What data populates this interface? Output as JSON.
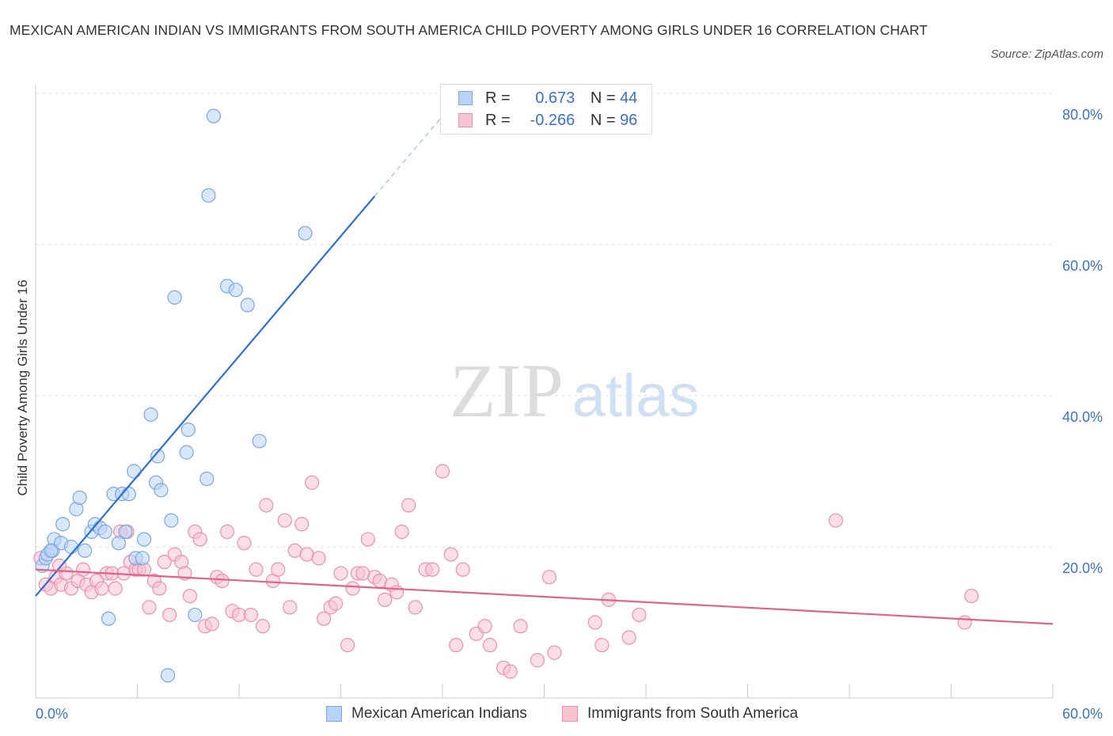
{
  "title": "MEXICAN AMERICAN INDIAN VS IMMIGRANTS FROM SOUTH AMERICA CHILD POVERTY AMONG GIRLS UNDER 16 CORRELATION CHART",
  "source": "Source: ZipAtlas.com",
  "watermark": {
    "zip": "ZIP",
    "atlas": "atlas"
  },
  "colors": {
    "blue_fill": "#b9d3f5",
    "blue_stroke": "#7aa7e3",
    "blue_line": "#2f6fcf",
    "pink_fill": "#f7c3d3",
    "pink_stroke": "#ec8fae",
    "pink_line": "#e0628e",
    "axis_text": "#3a72c4",
    "grid": "#dddddd"
  },
  "legend": {
    "r_label": "R =",
    "n_label": "N =",
    "rows": [
      {
        "series": "Mexican American Indians",
        "r": "0.673",
        "n": "44"
      },
      {
        "series": "Immigrants from South America",
        "r": "-0.266",
        "n": "96"
      }
    ]
  },
  "chart_data": {
    "type": "scatter",
    "title": "MEXICAN AMERICAN INDIAN VS IMMIGRANTS FROM SOUTH AMERICA CHILD POVERTY AMONG GIRLS UNDER 16 CORRELATION CHART",
    "xlabel": "",
    "ylabel": "Child Poverty Among Girls Under 16",
    "xlim": [
      0,
      60
    ],
    "ylim": [
      0,
      80
    ],
    "x_tick_labels": [
      "0.0%",
      "60.0%"
    ],
    "y_ticks": [
      20,
      40,
      60,
      80
    ],
    "y_tick_labels": [
      "20.0%",
      "40.0%",
      "60.0%",
      "80.0%"
    ],
    "grid": true,
    "legend_position": "top-center",
    "series": [
      {
        "name": "Mexican American Indians",
        "color": "#b9d3f5",
        "trend": {
          "x": [
            0,
            20
          ],
          "y": [
            13.5,
            66.4
          ],
          "dashed_to": [
            24,
            77
          ]
        },
        "points": [
          [
            0.4,
            17.5
          ],
          [
            0.6,
            18.5
          ],
          [
            0.7,
            19
          ],
          [
            1.0,
            19.5
          ],
          [
            1.1,
            21
          ],
          [
            1.5,
            20.5
          ],
          [
            1.6,
            23
          ],
          [
            2.1,
            20
          ],
          [
            2.4,
            25
          ],
          [
            2.6,
            26.5
          ],
          [
            2.9,
            19.5
          ],
          [
            3.3,
            22
          ],
          [
            3.5,
            23
          ],
          [
            3.8,
            22.5
          ],
          [
            4.1,
            22
          ],
          [
            4.3,
            10.5
          ],
          [
            4.6,
            27
          ],
          [
            4.9,
            20.5
          ],
          [
            5.1,
            27
          ],
          [
            5.3,
            22
          ],
          [
            5.5,
            27
          ],
          [
            5.8,
            30
          ],
          [
            5.9,
            18.5
          ],
          [
            6.3,
            18.5
          ],
          [
            6.4,
            21
          ],
          [
            6.8,
            37.5
          ],
          [
            7.1,
            28.5
          ],
          [
            7.2,
            32
          ],
          [
            7.4,
            27.5
          ],
          [
            7.8,
            3
          ],
          [
            8.0,
            23.5
          ],
          [
            8.2,
            53
          ],
          [
            8.9,
            32.5
          ],
          [
            9.0,
            35.5
          ],
          [
            9.4,
            11
          ],
          [
            10.1,
            29
          ],
          [
            10.2,
            66.5
          ],
          [
            10.5,
            77
          ],
          [
            11.3,
            54.5
          ],
          [
            11.8,
            54
          ],
          [
            12.5,
            52
          ],
          [
            13.2,
            34
          ],
          [
            15.9,
            61.5
          ],
          [
            0.9,
            19.5
          ]
        ]
      },
      {
        "name": "Immigrants from South America",
        "color": "#f7c3d3",
        "trend": {
          "x": [
            0,
            60
          ],
          "y": [
            17,
            9.8
          ]
        },
        "points": [
          [
            0.3,
            18.5
          ],
          [
            0.6,
            15
          ],
          [
            0.9,
            14.5
          ],
          [
            1.2,
            16
          ],
          [
            1.5,
            15
          ],
          [
            1.8,
            16.5
          ],
          [
            2.1,
            14.5
          ],
          [
            2.5,
            15.5
          ],
          [
            2.8,
            17
          ],
          [
            3.0,
            15
          ],
          [
            3.3,
            14
          ],
          [
            3.6,
            15.5
          ],
          [
            3.9,
            14.5
          ],
          [
            4.2,
            16.5
          ],
          [
            4.5,
            16.5
          ],
          [
            4.7,
            14.5
          ],
          [
            5.0,
            22
          ],
          [
            5.2,
            16.5
          ],
          [
            5.4,
            22
          ],
          [
            5.6,
            18
          ],
          [
            5.9,
            17
          ],
          [
            6.1,
            17
          ],
          [
            6.4,
            17
          ],
          [
            6.7,
            12
          ],
          [
            7.0,
            15.5
          ],
          [
            7.3,
            14.5
          ],
          [
            7.6,
            18
          ],
          [
            7.9,
            11
          ],
          [
            8.2,
            19
          ],
          [
            8.6,
            18
          ],
          [
            8.8,
            16.5
          ],
          [
            9.1,
            13.5
          ],
          [
            9.4,
            22
          ],
          [
            9.7,
            21
          ],
          [
            10.0,
            9.5
          ],
          [
            10.4,
            9.8
          ],
          [
            10.7,
            16
          ],
          [
            11.0,
            15.5
          ],
          [
            11.3,
            22
          ],
          [
            11.6,
            11.5
          ],
          [
            12.0,
            11
          ],
          [
            12.3,
            20.5
          ],
          [
            12.7,
            11
          ],
          [
            13.0,
            17
          ],
          [
            13.4,
            9.5
          ],
          [
            13.6,
            25.5
          ],
          [
            14.0,
            15.5
          ],
          [
            14.3,
            17
          ],
          [
            14.7,
            23.5
          ],
          [
            15.0,
            12
          ],
          [
            15.3,
            19.5
          ],
          [
            15.7,
            23
          ],
          [
            16.0,
            19
          ],
          [
            16.3,
            28.5
          ],
          [
            16.7,
            18.5
          ],
          [
            17.0,
            10.5
          ],
          [
            17.4,
            12
          ],
          [
            17.7,
            12.5
          ],
          [
            18.0,
            16.5
          ],
          [
            18.4,
            7
          ],
          [
            18.7,
            14.5
          ],
          [
            19.0,
            16.5
          ],
          [
            19.3,
            16.5
          ],
          [
            19.6,
            21
          ],
          [
            20.0,
            16
          ],
          [
            20.3,
            15.5
          ],
          [
            20.6,
            13
          ],
          [
            21.0,
            15
          ],
          [
            21.3,
            14
          ],
          [
            21.6,
            22
          ],
          [
            22.0,
            25.5
          ],
          [
            22.4,
            12
          ],
          [
            23.0,
            17
          ],
          [
            23.4,
            17
          ],
          [
            24.0,
            30
          ],
          [
            24.5,
            19
          ],
          [
            24.8,
            7
          ],
          [
            25.2,
            17
          ],
          [
            26.0,
            8.5
          ],
          [
            26.5,
            9.5
          ],
          [
            26.8,
            7
          ],
          [
            27.6,
            4
          ],
          [
            28.0,
            3.5
          ],
          [
            28.6,
            9.5
          ],
          [
            29.6,
            5
          ],
          [
            30.3,
            16
          ],
          [
            30.6,
            6
          ],
          [
            33.0,
            10
          ],
          [
            33.4,
            7
          ],
          [
            33.8,
            13
          ],
          [
            35.0,
            8
          ],
          [
            35.6,
            11
          ],
          [
            47.2,
            23.5
          ],
          [
            54.8,
            10
          ],
          [
            55.2,
            13.5
          ],
          [
            1.4,
            17.5
          ]
        ]
      }
    ]
  }
}
